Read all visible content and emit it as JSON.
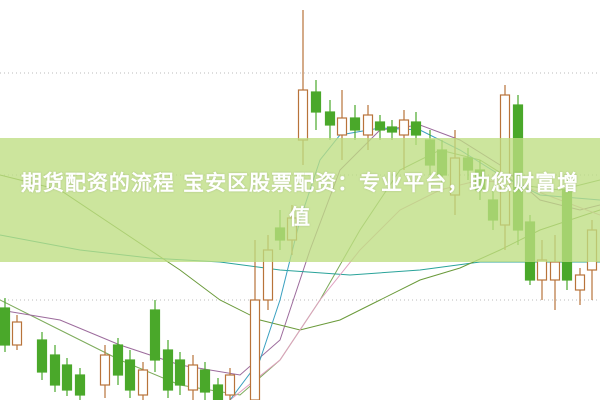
{
  "headline": "期货配资的流程 宝安区股票配资：专业平台，助您财富增值",
  "colors": {
    "up_candle": "#b8733a",
    "down_candle": "#4aa82a",
    "banner": "#c4e08e"
  }
}
